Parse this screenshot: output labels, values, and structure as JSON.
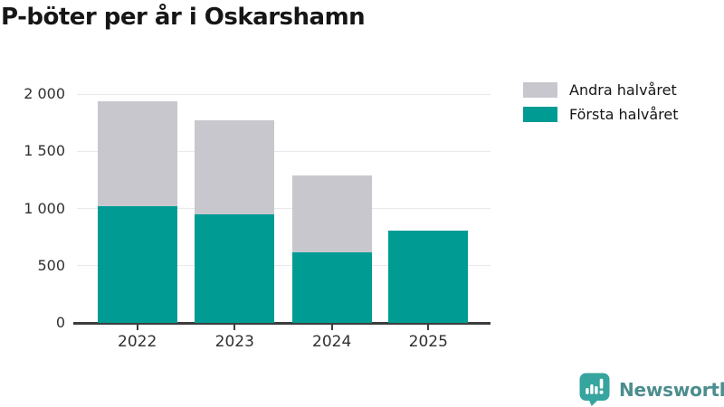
{
  "title": "P-böter per år i Oskarshamn",
  "legend": {
    "items": [
      {
        "label": "Andra halvåret",
        "color": "#c8c7ce"
      },
      {
        "label": "Första halvåret",
        "color": "#009c94"
      }
    ]
  },
  "chart_data": {
    "type": "bar",
    "stacked": true,
    "title": "P-böter per år i Oskarshamn",
    "categories": [
      "2022",
      "2023",
      "2024",
      "2025"
    ],
    "series": [
      {
        "name": "Första halvåret",
        "color": "#009c94",
        "values": [
          1020,
          950,
          615,
          810
        ]
      },
      {
        "name": "Andra halvåret",
        "color": "#c8c7ce",
        "values": [
          920,
          820,
          675,
          0
        ]
      }
    ],
    "xlabel": "",
    "ylabel": "",
    "ylim": [
      0,
      2000
    ],
    "yticks": [
      0,
      500,
      1000,
      1500,
      2000
    ],
    "ytick_labels": [
      "0",
      "500",
      "1 000",
      "1 500",
      "2 000"
    ],
    "grid": true,
    "legend_position": "top-right",
    "colors": {
      "gridline": "#e9e9ec",
      "axis": "#3c3c3c",
      "tick_text": "#303030",
      "title_text": "#161616"
    }
  },
  "branding": {
    "wordmark": "Newsworthy",
    "icon": "newsworthy-bubble-chart-icon",
    "icon_color": "#36a49f",
    "wordmark_color": "#4c8d8e"
  }
}
